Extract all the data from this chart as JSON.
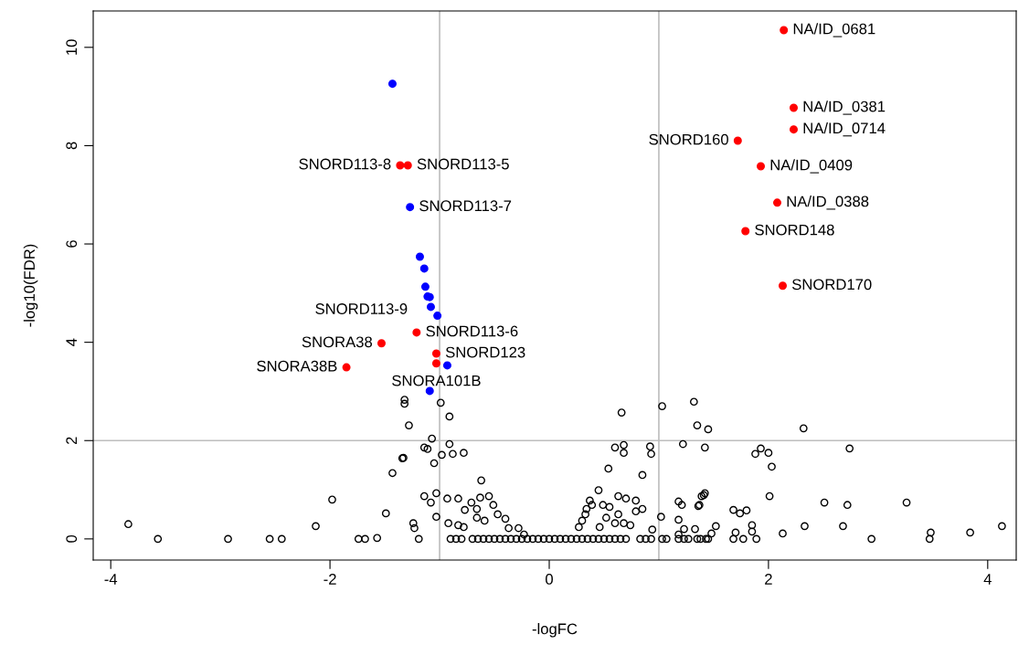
{
  "chart_data": {
    "type": "scatter",
    "xlabel": "-logFC",
    "ylabel": "-log10(FDR)",
    "xlim": [
      -4.16,
      4.26
    ],
    "ylim": [
      -0.43,
      10.74
    ],
    "xticks": [
      -4,
      -2,
      0,
      2,
      4
    ],
    "yticks": [
      0,
      2,
      4,
      6,
      8,
      10
    ],
    "grid": false,
    "legend": false,
    "marker": "circle",
    "ref_lines": [
      {
        "axis": "x",
        "value": -1,
        "color": "#bebebe"
      },
      {
        "axis": "x",
        "value": 1,
        "color": "#bebebe"
      },
      {
        "axis": "y",
        "value": 2,
        "color": "#bebebe"
      }
    ],
    "series": [
      {
        "color": "#000000",
        "x": [
          -3.84,
          -3.57,
          -2.93,
          -2.55,
          -2.44,
          -2.13,
          -1.98,
          -1.74,
          -1.68,
          -1.57,
          -1.49,
          -1.43,
          -1.34,
          -1.28,
          -1.32,
          -1.32,
          -1.24,
          -1.23,
          -0.99,
          -0.91,
          -1.07,
          -1.14,
          -1.11,
          -1.33,
          -0.91,
          -0.98,
          -0.88,
          -0.78,
          -1.05,
          -0.62,
          -1.14,
          -1.03,
          -1.08,
          -0.93,
          -0.83,
          -0.71,
          -0.63,
          -0.55,
          -0.51,
          -0.77,
          -0.66,
          -1.03,
          -0.92,
          -0.83,
          -0.78,
          -0.66,
          -0.59,
          -0.47,
          -0.4,
          -0.37,
          -0.28,
          -0.23,
          -1.19,
          -0.9,
          -0.85,
          -0.8,
          -0.7,
          -0.65,
          -0.6,
          -0.55,
          -0.5,
          -0.45,
          -0.4,
          -0.35,
          -0.3,
          -0.25,
          -0.2,
          -0.15,
          -0.1,
          -0.05,
          0,
          0.05,
          0.1,
          0.15,
          0.2,
          0.25,
          0.3,
          0.35,
          0.4,
          0.45,
          0.5,
          0.55,
          0.6,
          0.65,
          0.7,
          0.83,
          0.88,
          0.93,
          1.03,
          1.07,
          1.18,
          1.23,
          1.27,
          1.35,
          1.38,
          1.43,
          1.45,
          0.27,
          0.3,
          0.33,
          0.34,
          0.37,
          0.45,
          0.39,
          0.49,
          0.55,
          0.46,
          0.54,
          0.6,
          0.68,
          0.68,
          0.66,
          0.63,
          0.7,
          0.52,
          0.6,
          0.63,
          0.68,
          0.74,
          0.79,
          0.79,
          0.85,
          0.85,
          0.92,
          0.93,
          0.94,
          1.02,
          1.03,
          1.32,
          1.35,
          1.45,
          1.22,
          1.42,
          1.18,
          1.18,
          1.21,
          1.37,
          1.39,
          1.42,
          1.23,
          1.33,
          1.18,
          2.32,
          1.88,
          1.93,
          2.0,
          2.03,
          2.74,
          1.41,
          1.36,
          1.52,
          1.48,
          1.68,
          1.74,
          1.8,
          2.01,
          2.51,
          2.72,
          3.26,
          1.85,
          1.85,
          1.7,
          2.33,
          2.68,
          4.13,
          3.84,
          3.48,
          2.13,
          1.68,
          1.77,
          1.89,
          2.94,
          3.47
        ],
        "values": [
          0.3,
          0,
          0,
          0,
          0,
          0.26,
          0.8,
          0,
          0,
          0.02,
          0.52,
          1.34,
          1.64,
          2.31,
          2.75,
          2.83,
          0.32,
          0.22,
          2.77,
          2.49,
          2.04,
          1.86,
          1.83,
          1.65,
          1.93,
          1.71,
          1.73,
          1.75,
          1.54,
          1.19,
          0.87,
          0.93,
          0.74,
          0.82,
          0.82,
          0.74,
          0.84,
          0.87,
          0.69,
          0.59,
          0.61,
          0.45,
          0.32,
          0.28,
          0.24,
          0.43,
          0.37,
          0.5,
          0.41,
          0.22,
          0.22,
          0.09,
          0,
          0,
          0,
          0,
          0,
          0,
          0,
          0,
          0,
          0,
          0,
          0,
          0,
          0,
          0,
          0,
          0,
          0,
          0,
          0,
          0,
          0,
          0,
          0,
          0,
          0,
          0,
          0,
          0,
          0,
          0,
          0,
          0,
          0,
          0,
          0,
          0,
          0,
          0,
          0,
          0,
          0,
          0,
          0,
          0,
          0.24,
          0.37,
          0.5,
          0.61,
          0.78,
          0.99,
          0.69,
          0.69,
          0.65,
          0.24,
          1.43,
          1.86,
          1.75,
          1.91,
          2.57,
          0.87,
          0.82,
          0.43,
          0.32,
          0.5,
          0.32,
          0.28,
          0.78,
          0.56,
          0.61,
          1.3,
          1.88,
          1.73,
          0.19,
          0.45,
          2.7,
          2.79,
          2.31,
          2.23,
          1.93,
          1.86,
          0.39,
          0.76,
          0.69,
          0.69,
          0.87,
          0.93,
          0.2,
          0.2,
          0.09,
          2.25,
          1.73,
          1.84,
          1.75,
          1.47,
          1.84,
          0.89,
          0.67,
          0.26,
          0.11,
          0.59,
          0.52,
          0.58,
          0.87,
          0.74,
          0.69,
          0.74,
          0.28,
          0.15,
          0.13,
          0.26,
          0.26,
          0.26,
          0.13,
          0.13,
          0.11,
          0,
          0,
          0,
          0,
          0
        ]
      },
      {
        "color": "#0000ff",
        "x": [
          -1.43,
          -1.27,
          -1.18,
          -1.14,
          -1.13,
          -1.11,
          -1.09,
          -1.08,
          -1.02,
          -0.93,
          -1.09
        ],
        "values": [
          9.26,
          6.75,
          5.74,
          5.5,
          5.13,
          4.93,
          4.92,
          4.72,
          4.54,
          3.53,
          3.01
        ]
      },
      {
        "color": "#ff0000",
        "x": [
          2.14,
          2.23,
          2.23,
          1.72,
          1.93,
          2.08,
          1.79,
          2.13,
          -1.36,
          -1.29,
          -1.21,
          -1.53,
          -1.85,
          -1.03,
          -1.03
        ],
        "values": [
          10.35,
          8.77,
          8.33,
          8.1,
          7.58,
          6.84,
          6.26,
          5.15,
          7.6,
          7.6,
          4.2,
          3.98,
          3.49,
          3.77,
          3.57
        ]
      }
    ],
    "annotations": [
      {
        "text": "NA/ID_0681",
        "x": 2.14,
        "y": 10.35
      },
      {
        "text": "NA/ID_0381",
        "x": 2.23,
        "y": 8.77
      },
      {
        "text": "NA/ID_0714",
        "x": 2.23,
        "y": 8.33
      },
      {
        "text": "NA/ID_0409",
        "x": 1.93,
        "y": 7.58
      },
      {
        "text": "SNORD160",
        "x": 1.72,
        "y": 8.1
      },
      {
        "text": "NA/ID_0388",
        "x": 2.08,
        "y": 6.84
      },
      {
        "text": "SNORD148",
        "x": 1.79,
        "y": 6.26
      },
      {
        "text": "SNORD170",
        "x": 2.13,
        "y": 5.15
      },
      {
        "text": "SNORD113-5",
        "x": -1.29,
        "y": 7.6
      },
      {
        "text": "SNORD113-8",
        "x": -1.36,
        "y": 7.6
      },
      {
        "text": "SNORD113-7",
        "x": -1.27,
        "y": 6.75
      },
      {
        "text": "SNORD113-6",
        "x": -1.21,
        "y": 4.2
      },
      {
        "text": "SNORA38",
        "x": -1.53,
        "y": 3.98
      },
      {
        "text": "SNORD113-9",
        "x": -1.21,
        "y": 4.2
      },
      {
        "text": "SNORD123",
        "x": -1.03,
        "y": 3.77
      },
      {
        "text": "SNORA38B",
        "x": -1.85,
        "y": 3.49
      },
      {
        "text": "SNORA101B",
        "x": -1.03,
        "y": 3.57
      }
    ]
  }
}
